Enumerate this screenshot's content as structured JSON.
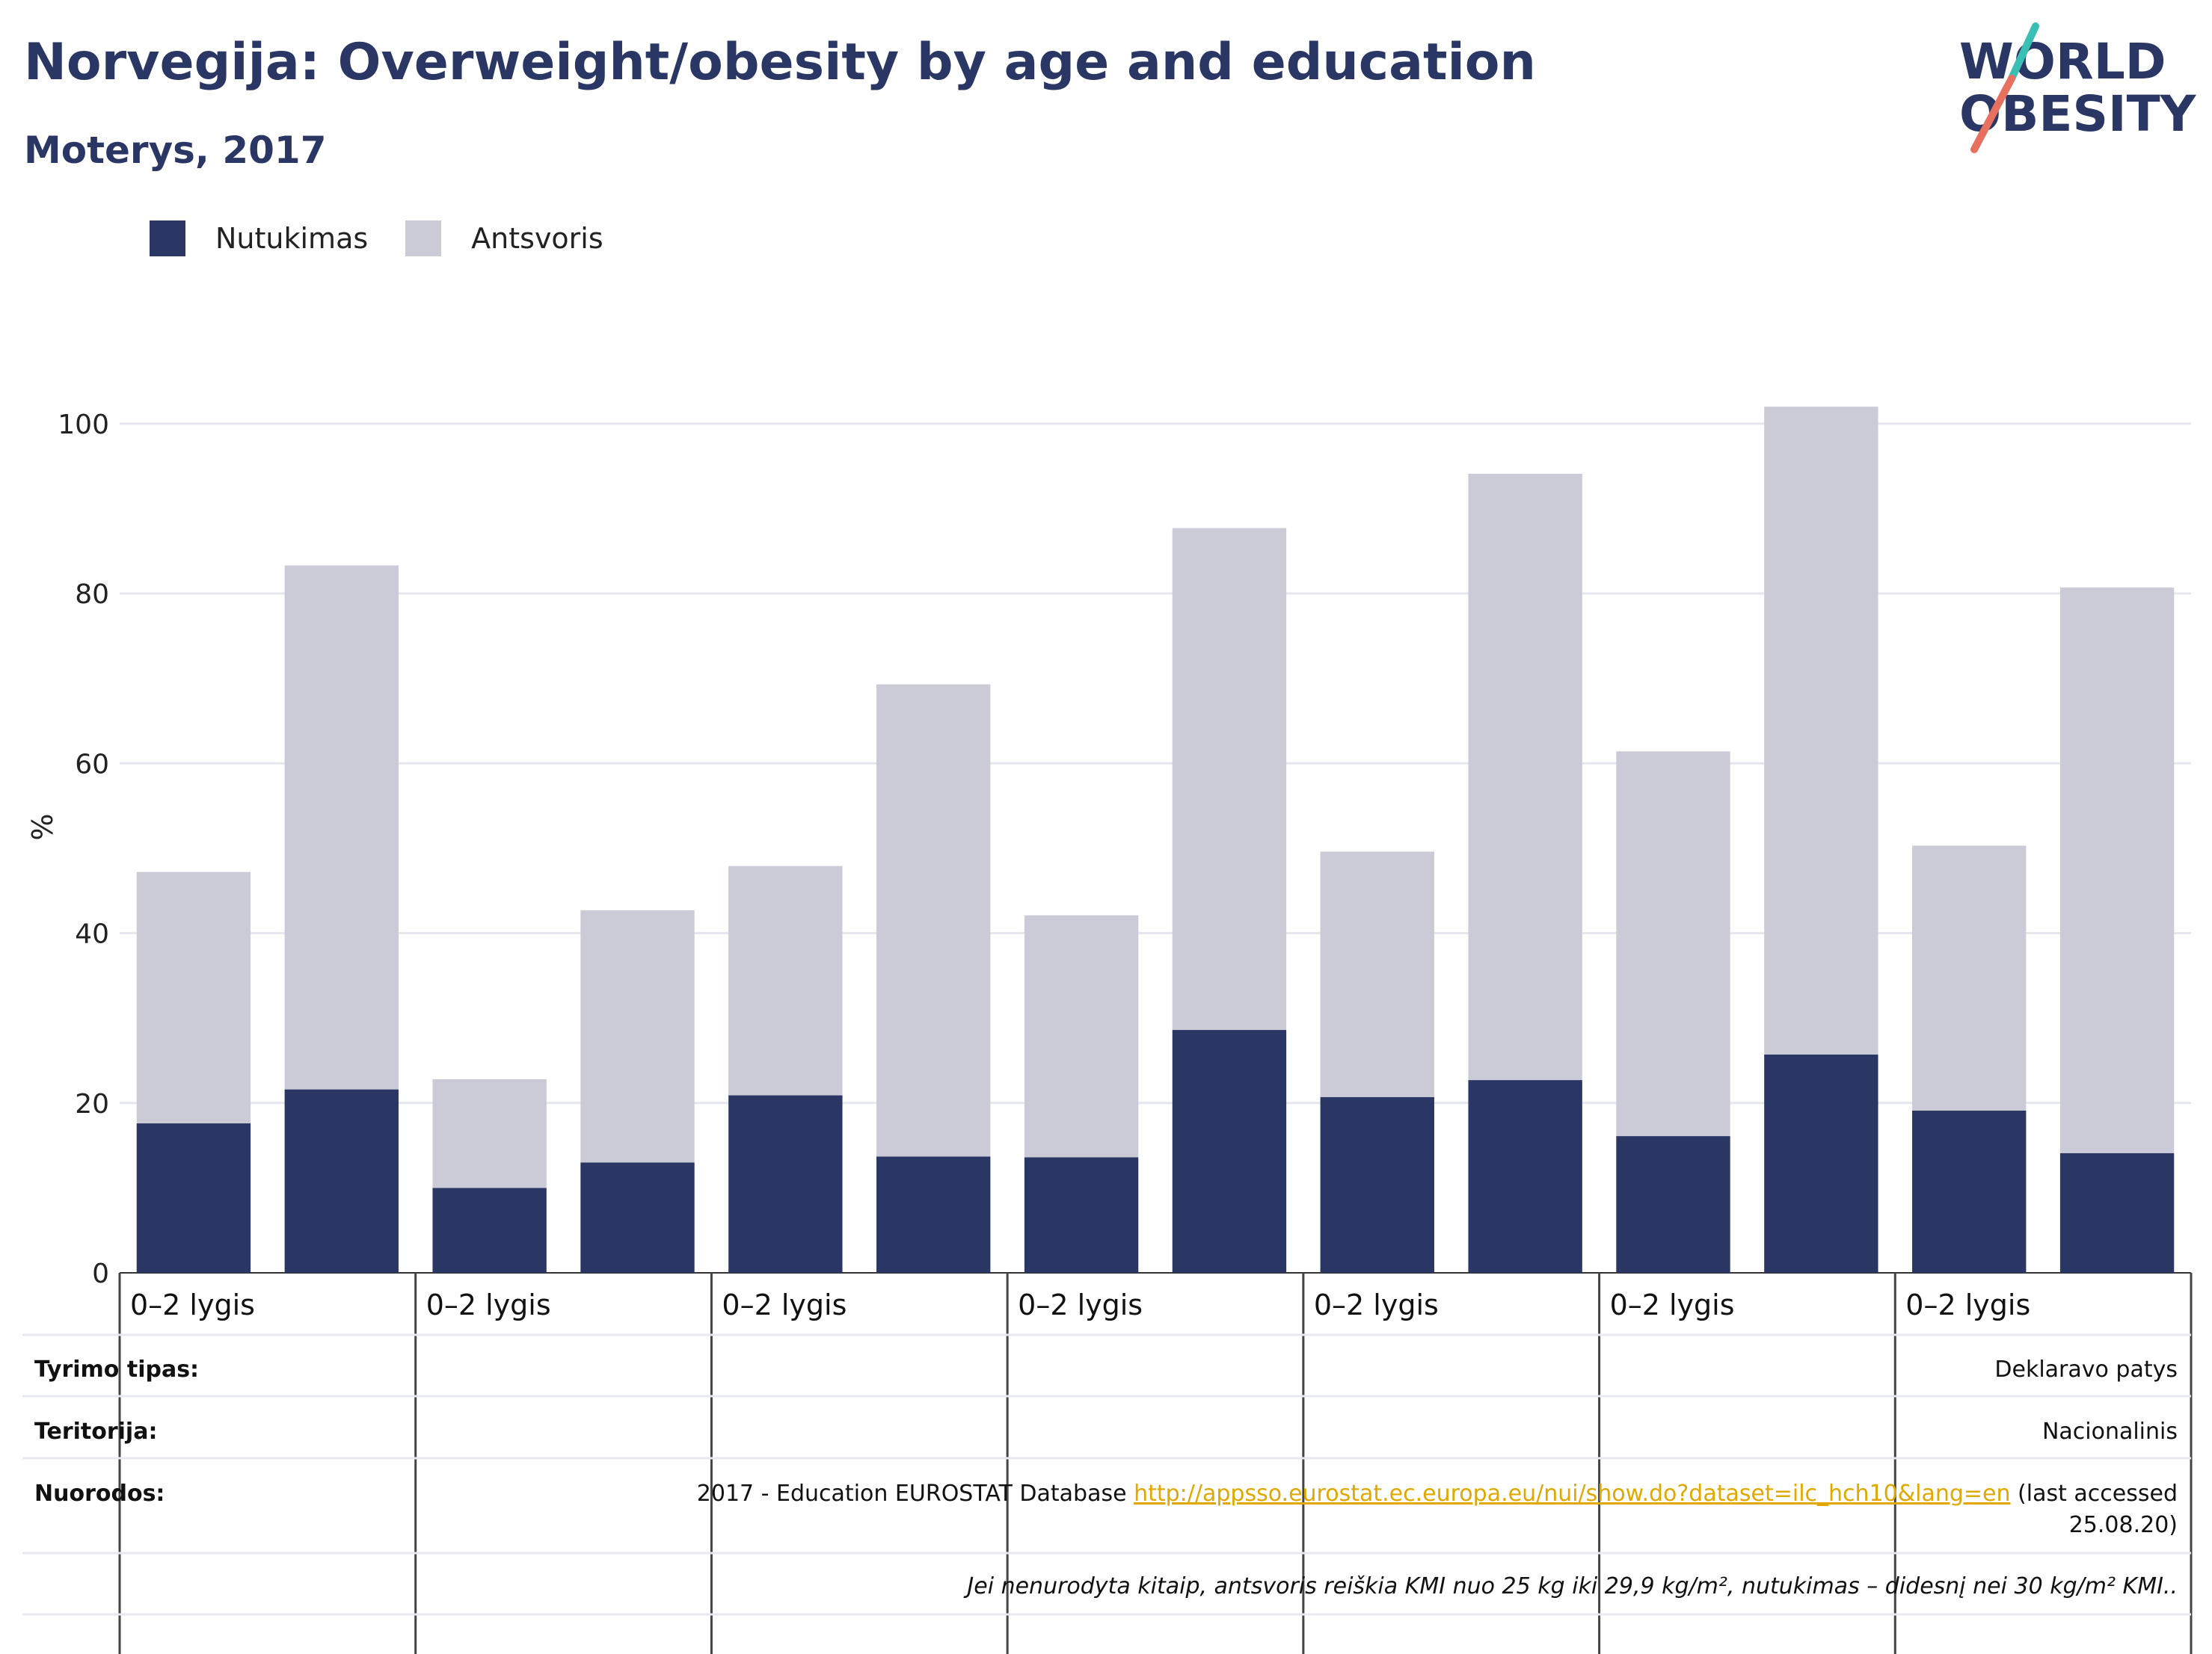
{
  "header": {
    "title": "Norvegija: Overweight/obesity by age and education",
    "subtitle": "Moterys, 2017"
  },
  "logo": {
    "line1": "WORLD",
    "line2": "OBESITY"
  },
  "colors": {
    "obesity": "#2a3663",
    "overweight": "#cacbd7",
    "link": "#e0a800"
  },
  "chart_data": {
    "type": "bar",
    "stacked": true,
    "ylabel": "%",
    "ylim": [
      0,
      105
    ],
    "yticks": [
      0,
      20,
      40,
      60,
      80,
      100
    ],
    "grid": true,
    "legend_placement": "top-left",
    "group_labels": [
      "0–2 lygis",
      "0–2 lygis",
      "0–2 lygis",
      "0–2 lygis",
      "0–2 lygis",
      "0–2 lygis",
      "0–2 lygis"
    ],
    "series": [
      {
        "name": "Nutukimas",
        "values": [
          17.6,
          21.6,
          10.0,
          13.0,
          20.9,
          13.7,
          13.6,
          28.6,
          20.7,
          22.7,
          16.1,
          25.7,
          19.1,
          14.1
        ]
      },
      {
        "name": "Antsvoris",
        "values": [
          29.6,
          61.7,
          12.8,
          29.7,
          27.0,
          55.6,
          28.5,
          59.1,
          28.9,
          71.4,
          45.3,
          76.3,
          31.2,
          66.6
        ]
      }
    ]
  },
  "meta": {
    "survey_label": "Tyrimo tipas:",
    "survey_value": "Deklaravo patys",
    "territory_label": "Teritorija:",
    "territory_value": "Nacionalinis",
    "refs_label": "Nuorodos:",
    "refs_prefix": "2017 - Education EUROSTAT Database",
    "refs_link": "http://appsso.eurostat.ec.europa.eu/nui/show.do?dataset=ilc_hch10&lang=en",
    "refs_suffix": "(last accessed",
    "refs_date": "25.08.20)",
    "note": "Jei nenurodyta kitaip, antsvoris reiškia KMI nuo 25 kg iki 29,9 kg/m², nutukimas – didesnį nei 30 kg/m² KMI.."
  }
}
